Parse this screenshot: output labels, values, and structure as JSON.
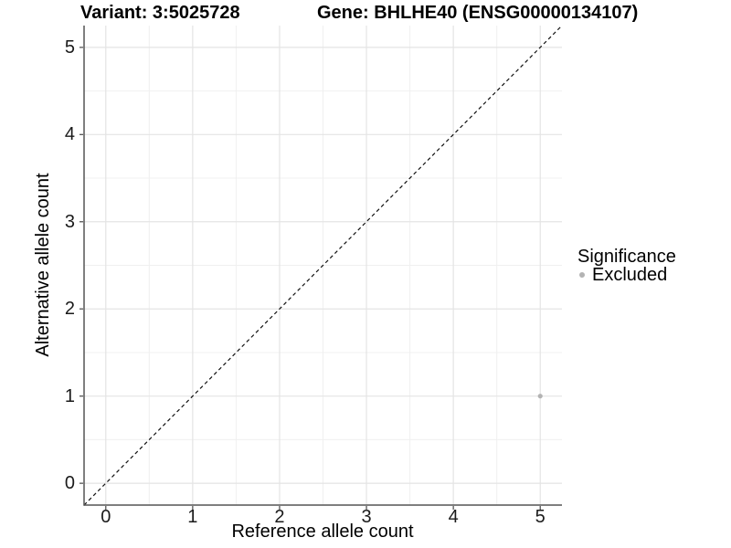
{
  "figure": {
    "title_left": "Variant: 3:5025728",
    "title_right": "Gene: BHLHE40 (ENSG00000134107)"
  },
  "chart_data": {
    "type": "scatter",
    "title": "Variant: 3:5025728   Gene: BHLHE40 (ENSG00000134107)",
    "xlabel": "Reference allele count",
    "ylabel": "Alternative allele count",
    "xlim": [
      -0.25,
      5.25
    ],
    "ylim": [
      -0.25,
      5.25
    ],
    "x_ticks": [
      0,
      1,
      2,
      3,
      4,
      5
    ],
    "y_ticks": [
      0,
      1,
      2,
      3,
      4,
      5
    ],
    "x_tick_labels": [
      "0",
      "1",
      "2",
      "3",
      "4",
      "5"
    ],
    "y_tick_labels": [
      "0",
      "1",
      "2",
      "3",
      "4",
      "5"
    ],
    "minor_ticks_x": [
      0.5,
      1.5,
      2.5,
      3.5,
      4.5
    ],
    "minor_ticks_y": [
      0.5,
      1.5,
      2.5,
      3.5,
      4.5
    ],
    "grid": true,
    "legend_position": "right",
    "points": [
      {
        "x": 5,
        "y": 1,
        "series": "Excluded"
      }
    ],
    "reference_line": {
      "type": "abline",
      "slope": 1,
      "intercept": 0,
      "style": "dashed"
    },
    "legend": {
      "title": "Significance",
      "items": [
        {
          "label": "Excluded",
          "color": "#b3b3b3",
          "marker": "circle"
        }
      ]
    }
  },
  "colors": {
    "background": "#ffffff",
    "grid_major": "#e4e4e4",
    "grid_minor": "#f0f0f0",
    "axis_line": "#555555",
    "tick_mark": "#555555",
    "identity_line": "#111111",
    "point": "#b3b3b3"
  }
}
